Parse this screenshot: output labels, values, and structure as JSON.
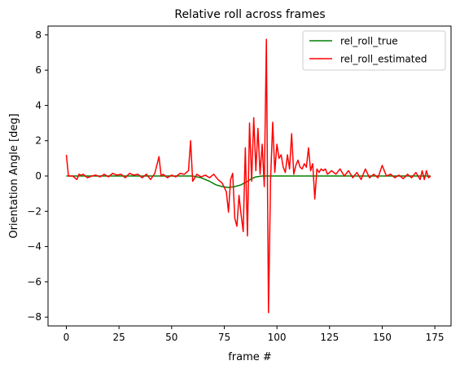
{
  "chart_data": {
    "type": "line",
    "title": "Relative roll across frames",
    "xlabel": "frame #",
    "ylabel": "Orientation Angle [deg]",
    "xlim": [
      -8.7,
      182.7
    ],
    "ylim": [
      -8.5,
      8.5
    ],
    "xticks": [
      0,
      25,
      50,
      75,
      100,
      125,
      150,
      175
    ],
    "yticks": [
      -8,
      -6,
      -4,
      -2,
      0,
      2,
      4,
      6,
      8
    ],
    "legend_position": "top-right",
    "series": [
      {
        "name": "rel_roll_true",
        "color": "#008000",
        "x": [
          0,
          60,
          64,
          68,
          71,
          74,
          77,
          80,
          83,
          86,
          88,
          90,
          93,
          173
        ],
        "y": [
          0,
          0,
          -0.1,
          -0.3,
          -0.5,
          -0.6,
          -0.65,
          -0.6,
          -0.5,
          -0.3,
          -0.15,
          -0.05,
          0,
          0
        ]
      },
      {
        "name": "rel_roll_estimated",
        "color": "#ff0000",
        "x": [
          0,
          1,
          3,
          5,
          6,
          7,
          8,
          10,
          12,
          14,
          16,
          18,
          20,
          22,
          24,
          26,
          28,
          30,
          32,
          34,
          36,
          38,
          40,
          42,
          44,
          45,
          46,
          48,
          50,
          52,
          54,
          56,
          58,
          59,
          60,
          62,
          64,
          66,
          68,
          70,
          72,
          74,
          76,
          77,
          78,
          79,
          80,
          81,
          82,
          83,
          84,
          85,
          86,
          87,
          88,
          89,
          90,
          91,
          92,
          93,
          94,
          95,
          96,
          97,
          98,
          99,
          100,
          101,
          102,
          103,
          104,
          105,
          106,
          107,
          108,
          109,
          110,
          111,
          112,
          113,
          114,
          115,
          116,
          117,
          118,
          119,
          120,
          121,
          122,
          123,
          124,
          126,
          128,
          130,
          132,
          134,
          136,
          138,
          140,
          142,
          144,
          146,
          148,
          150,
          152,
          154,
          156,
          158,
          160,
          162,
          164,
          166,
          168,
          169,
          170,
          171,
          172,
          173
        ],
        "y": [
          1.2,
          0,
          0,
          -0.2,
          0.1,
          0.05,
          0.1,
          -0.1,
          0,
          0.05,
          -0.05,
          0.1,
          -0.05,
          0.15,
          0.05,
          0.1,
          -0.1,
          0.15,
          0.05,
          0.1,
          -0.1,
          0.1,
          -0.2,
          0.15,
          1.1,
          0,
          0.1,
          -0.1,
          0.05,
          -0.05,
          0.15,
          0.1,
          0.3,
          2.0,
          -0.3,
          0.1,
          -0.05,
          0.05,
          -0.1,
          0.1,
          -0.2,
          -0.4,
          -0.9,
          -2.05,
          -0.2,
          0.15,
          -2.4,
          -2.85,
          -1.1,
          -2.2,
          -3.15,
          1.6,
          -3.4,
          3.0,
          -0.3,
          3.3,
          0.3,
          2.7,
          0.1,
          1.8,
          -0.6,
          7.75,
          -7.75,
          -0.2,
          3.05,
          0.2,
          1.8,
          1.0,
          1.2,
          0.5,
          0.2,
          1.2,
          0.4,
          2.4,
          0.1,
          0.6,
          0.9,
          0.5,
          0.4,
          0.7,
          0.5,
          1.6,
          0.3,
          0.7,
          -1.3,
          0.4,
          0.2,
          0.4,
          0.3,
          0.4,
          0.1,
          0.3,
          0.1,
          0.4,
          0,
          0.3,
          -0.1,
          0.2,
          -0.2,
          0.4,
          -0.1,
          0.1,
          -0.1,
          0.6,
          0,
          0.1,
          -0.1,
          0.05,
          -0.15,
          0.1,
          -0.1,
          0.2,
          -0.2,
          0.3,
          -0.2,
          0.3,
          -0.1,
          0
        ]
      }
    ]
  }
}
